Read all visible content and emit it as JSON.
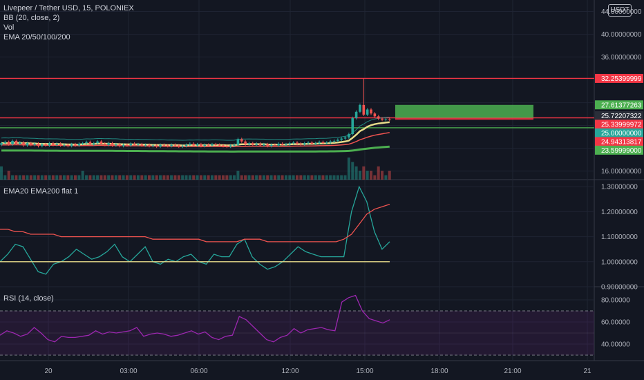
{
  "header": {
    "symbol_line": "Livepeer / Tether USD, 15, POLONIEX",
    "indicators": [
      "BB (20, close, 2)",
      "Vol",
      "EMA 20/50/100/200"
    ],
    "currency": "USDT"
  },
  "colors": {
    "background": "#131722",
    "grid": "#1f2433",
    "up": "#26a69a",
    "down": "#ef5350",
    "red_line": "#f23645",
    "green_line": "#4caf50",
    "yellow": "#e8dc8a",
    "rsi": "#9c27b0"
  },
  "time_axis": {
    "labels": [
      "20",
      "03:00",
      "06:00",
      "12:00",
      "15:00",
      "18:00",
      "21:00",
      "21"
    ]
  },
  "chart_data": [
    {
      "type": "candlestick",
      "pane": "price",
      "yticks": [
        16,
        20,
        24,
        28,
        36,
        40,
        44
      ],
      "ytick_labels": [
        "16.00000000",
        "20.00000000",
        "",
        "",
        "36.00000000",
        "40.00000000",
        "44.00000000"
      ],
      "ylim": [
        14.5,
        46
      ],
      "horizontal_lines": [
        {
          "value": 32.25399999,
          "label": "32.25399999",
          "color": "#f23645"
        },
        {
          "value": 25.33999972,
          "label": "25.33999972",
          "color": "#f23645"
        },
        {
          "value": 23.59999,
          "label": "23.59999000",
          "color": "#4caf50"
        }
      ],
      "price_badges": [
        {
          "value": 32.25399999,
          "label": "32.25399999",
          "color": "#f23645"
        },
        {
          "value": 27.61377263,
          "label": "27.61377263",
          "color": "#4caf50"
        },
        {
          "value": 25.72207322,
          "label": "25.72207322",
          "color": "#2a2e39"
        },
        {
          "value": 25.33999972,
          "label": "25.33999972",
          "color": "#f23645"
        },
        {
          "value": 25.0,
          "label": "25.00000000",
          "color": "#26a69a"
        },
        {
          "value": 24.94313817,
          "label": "24.94313817",
          "color": "#f23645"
        },
        {
          "value": 23.59999,
          "label": "23.59999000",
          "color": "#4caf50"
        }
      ],
      "position_box": {
        "entry": 25.34,
        "target": 27.61,
        "stop": 25.0
      },
      "candles_close": [
        20.9,
        21.1,
        20.7,
        21.3,
        20.8,
        21.0,
        20.5,
        20.9,
        20.6,
        20.8,
        20.4,
        20.7,
        20.5,
        20.9,
        20.6,
        20.8,
        20.5,
        20.6,
        20.4,
        20.7,
        20.5,
        20.8,
        20.9,
        21.1,
        20.7,
        20.9,
        21.2,
        20.8,
        20.6,
        20.9,
        20.5,
        20.7,
        20.4,
        20.6,
        20.5,
        20.8,
        20.6,
        20.7,
        20.5,
        20.6,
        20.4,
        20.5,
        20.3,
        20.6,
        20.5,
        20.4,
        20.6,
        20.5,
        20.3,
        20.4,
        20.6,
        20.8,
        20.5,
        20.7,
        20.4,
        20.6,
        20.5,
        20.7,
        20.6,
        20.5,
        20.4,
        20.3,
        20.5,
        20.6,
        21.6,
        21.2,
        20.7,
        20.9,
        20.6,
        20.8,
        20.5,
        20.7,
        20.4,
        20.6,
        20.5,
        20.8,
        20.6,
        20.7,
        20.9,
        21.0,
        20.8,
        20.7,
        20.9,
        21.0,
        20.8,
        20.9,
        21.1,
        20.9,
        21.0,
        21.2,
        21.3,
        21.5,
        21.7,
        21.9,
        22.5,
        25.3,
        26.4,
        27.6,
        25.9,
        26.8,
        26.1,
        25.6,
        25.2,
        25.0,
        25.1,
        25.0
      ],
      "volume": [
        3,
        1,
        2,
        1,
        1,
        1,
        1,
        1,
        1,
        1,
        1,
        1,
        1,
        1,
        1,
        1,
        1,
        1,
        1,
        1,
        1,
        1,
        2,
        1,
        1,
        1,
        1,
        1,
        1,
        1,
        1,
        1,
        1,
        1,
        1,
        1,
        1,
        1,
        1,
        1,
        1,
        1,
        1,
        1,
        1,
        1,
        1,
        1,
        1,
        1,
        1,
        1,
        1,
        1,
        1,
        1,
        1,
        1,
        1,
        1,
        1,
        1,
        1,
        1,
        2,
        1,
        1,
        1,
        1,
        1,
        1,
        1,
        1,
        1,
        1,
        1,
        1,
        1,
        1,
        1,
        1,
        1,
        1,
        1,
        1,
        1,
        1,
        1,
        1,
        1,
        1,
        1,
        1,
        1,
        5,
        4,
        3,
        2,
        3,
        2,
        2,
        1,
        3,
        2,
        1,
        2
      ]
    },
    {
      "type": "line",
      "pane": "ema_flat",
      "title": "EMA20 EMA200 flat 1",
      "yticks": [
        0.9,
        1.0,
        1.1,
        1.2,
        1.3
      ],
      "ytick_labels": [
        "0.90000000",
        "1.00000000",
        "1.10000000",
        "1.20000000",
        "1.30000000"
      ],
      "ylim": [
        0.9,
        1.32
      ],
      "series": [
        {
          "color": "#26a69a",
          "values": [
            1.0,
            1.03,
            1.07,
            1.06,
            1.01,
            0.96,
            0.95,
            0.99,
            1.0,
            1.02,
            1.05,
            1.03,
            1.01,
            1.02,
            1.04,
            1.07,
            1.02,
            1.0,
            1.03,
            1.06,
            1.0,
            0.99,
            1.01,
            1.0,
            1.02,
            1.03,
            1.0,
            0.99,
            1.03,
            1.02,
            1.02,
            1.07,
            1.09,
            1.02,
            0.99,
            0.97,
            0.98,
            1.0,
            1.03,
            1.06,
            1.04,
            1.03,
            1.02,
            1.02,
            1.02,
            1.02,
            1.2,
            1.3,
            1.24,
            1.12,
            1.05,
            1.08
          ]
        },
        {
          "color": "#ef5350",
          "values": [
            1.13,
            1.13,
            1.12,
            1.12,
            1.11,
            1.11,
            1.11,
            1.11,
            1.1,
            1.1,
            1.1,
            1.1,
            1.1,
            1.1,
            1.1,
            1.1,
            1.1,
            1.1,
            1.1,
            1.1,
            1.09,
            1.09,
            1.09,
            1.09,
            1.09,
            1.09,
            1.09,
            1.08,
            1.08,
            1.08,
            1.08,
            1.08,
            1.09,
            1.09,
            1.09,
            1.08,
            1.08,
            1.08,
            1.08,
            1.08,
            1.08,
            1.08,
            1.08,
            1.08,
            1.08,
            1.09,
            1.11,
            1.15,
            1.19,
            1.21,
            1.22,
            1.23
          ]
        },
        {
          "color": "#e8dc8a",
          "values": [
            1.0,
            1.0
          ]
        }
      ]
    },
    {
      "type": "line",
      "pane": "rsi",
      "title": "RSI (14, close)",
      "yticks": [
        40,
        60,
        80
      ],
      "ytick_labels": [
        "40.00000",
        "60.00000",
        "80.00000"
      ],
      "ylim": [
        25,
        90
      ],
      "bands": [
        30,
        70
      ],
      "series": [
        {
          "color": "#9c27b0",
          "values": [
            48,
            52,
            50,
            47,
            49,
            55,
            50,
            44,
            42,
            47,
            46,
            46,
            47,
            48,
            52,
            49,
            51,
            50,
            51,
            52,
            55,
            47,
            49,
            50,
            49,
            47,
            48,
            50,
            52,
            49,
            51,
            46,
            44,
            47,
            48,
            65,
            62,
            56,
            50,
            44,
            42,
            46,
            48,
            54,
            50,
            53,
            54,
            55,
            53,
            52,
            78,
            82,
            84,
            70,
            63,
            61,
            59,
            62
          ]
        }
      ]
    }
  ]
}
